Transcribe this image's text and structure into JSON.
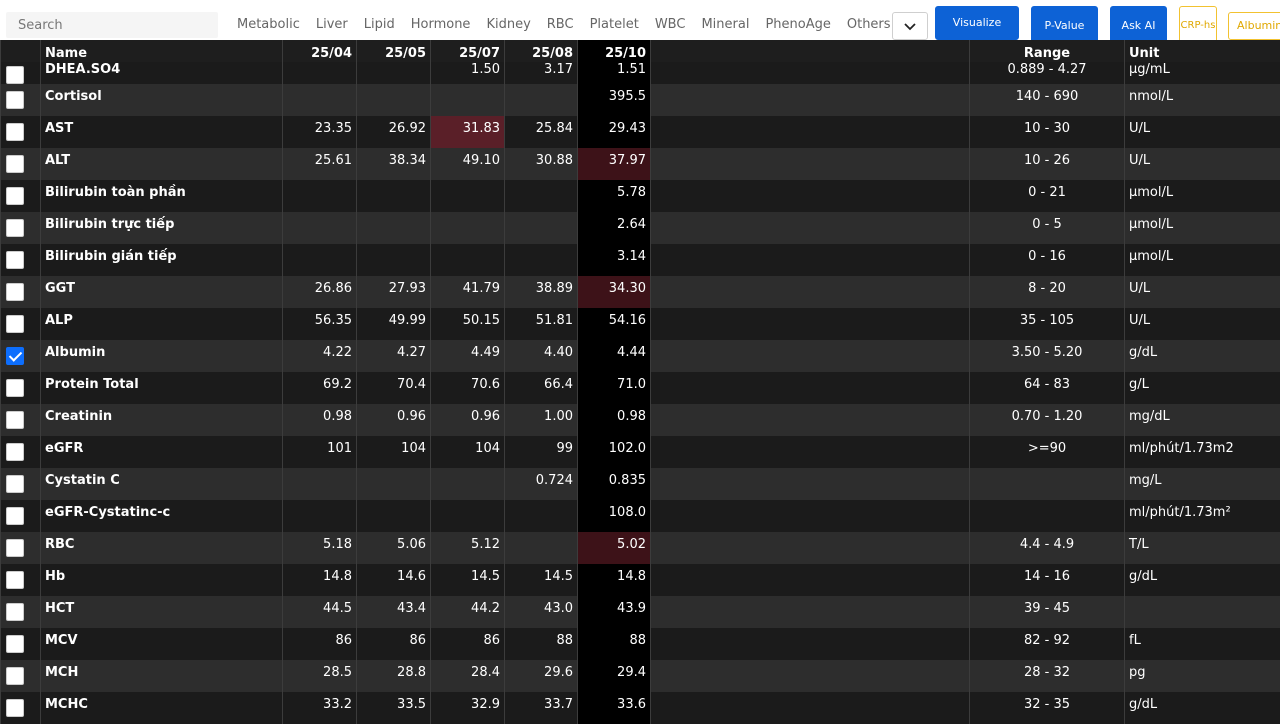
{
  "toolbar": {
    "search_placeholder": "Search",
    "tabs": [
      "Metabolic",
      "Liver",
      "Lipid",
      "Hormone",
      "Kidney",
      "RBC",
      "Platelet",
      "WBC",
      "Mineral",
      "PhenoAge",
      "Others"
    ],
    "buttons": {
      "visualize": "Visualize",
      "pvalue": "P-Value",
      "askai": "Ask AI",
      "crp": "CRP-hs",
      "albumin": "Albumin"
    },
    "dropdown_icon": "chevron-down-icon"
  },
  "table": {
    "headers": {
      "name": "Name",
      "dates": [
        "25/04",
        "25/05",
        "25/07",
        "25/08",
        "25/10"
      ],
      "range": "Range",
      "unit": "Unit"
    },
    "rows": [
      {
        "name": "DHEA.SO4",
        "values": [
          "",
          "",
          "1.50",
          "3.17",
          "1.51"
        ],
        "range": "0.889 - 4.27",
        "unit": "µg/mL",
        "checked": false
      },
      {
        "name": "Cortisol",
        "values": [
          "",
          "",
          "",
          "",
          "395.5"
        ],
        "range": "140 - 690",
        "unit": "nmol/L",
        "checked": false
      },
      {
        "name": "AST",
        "values": [
          "23.35",
          "26.92",
          "31.83",
          "25.84",
          "29.43"
        ],
        "range": "10 - 30",
        "unit": "U/L",
        "checked": false
      },
      {
        "name": "ALT",
        "values": [
          "25.61",
          "38.34",
          "49.10",
          "30.88",
          "37.97"
        ],
        "range": "10 - 26",
        "unit": "U/L",
        "checked": false
      },
      {
        "name": "Bilirubin toàn phần",
        "values": [
          "",
          "",
          "",
          "",
          "5.78"
        ],
        "range": "0 - 21",
        "unit": "µmol/L",
        "checked": false
      },
      {
        "name": "Bilirubin trực tiếp",
        "values": [
          "",
          "",
          "",
          "",
          "2.64"
        ],
        "range": "0 - 5",
        "unit": "µmol/L",
        "checked": false
      },
      {
        "name": "Bilirubin gián tiếp",
        "values": [
          "",
          "",
          "",
          "",
          "3.14"
        ],
        "range": "0 - 16",
        "unit": "µmol/L",
        "checked": false
      },
      {
        "name": "GGT",
        "values": [
          "26.86",
          "27.93",
          "41.79",
          "38.89",
          "34.30"
        ],
        "range": "8 - 20",
        "unit": "U/L",
        "checked": false
      },
      {
        "name": "ALP",
        "values": [
          "56.35",
          "49.99",
          "50.15",
          "51.81",
          "54.16"
        ],
        "range": "35 - 105",
        "unit": "U/L",
        "checked": false
      },
      {
        "name": "Albumin",
        "values": [
          "4.22",
          "4.27",
          "4.49",
          "4.40",
          "4.44"
        ],
        "range": "3.50 - 5.20",
        "unit": "g/dL",
        "checked": true
      },
      {
        "name": "Protein Total",
        "values": [
          "69.2",
          "70.4",
          "70.6",
          "66.4",
          "71.0"
        ],
        "range": "64 - 83",
        "unit": "g/L",
        "checked": false
      },
      {
        "name": "Creatinin",
        "values": [
          "0.98",
          "0.96",
          "0.96",
          "1.00",
          "0.98"
        ],
        "range": "0.70 - 1.20",
        "unit": "mg/dL",
        "checked": false
      },
      {
        "name": "eGFR",
        "values": [
          "101",
          "104",
          "104",
          "99",
          "102.0"
        ],
        "range": ">=90",
        "unit": "ml/phút/1.73m2",
        "checked": false
      },
      {
        "name": "Cystatin C",
        "values": [
          "",
          "",
          "",
          "0.724",
          "0.835"
        ],
        "range": "",
        "unit": "mg/L",
        "checked": false
      },
      {
        "name": "eGFR-Cystatinc-c",
        "values": [
          "",
          "",
          "",
          "",
          "108.0"
        ],
        "range": "",
        "unit": "ml/phút/1.73m²",
        "checked": false
      },
      {
        "name": "RBC",
        "values": [
          "5.18",
          "5.06",
          "5.12",
          "",
          "5.02"
        ],
        "range": "4.4 - 4.9",
        "unit": "T/L",
        "checked": false
      },
      {
        "name": "Hb",
        "values": [
          "14.8",
          "14.6",
          "14.5",
          "14.5",
          "14.8"
        ],
        "range": "14 - 16",
        "unit": "g/dL",
        "checked": false
      },
      {
        "name": "HCT",
        "values": [
          "44.5",
          "43.4",
          "44.2",
          "43.0",
          "43.9"
        ],
        "range": "39 - 45",
        "unit": "",
        "checked": false
      },
      {
        "name": "MCV",
        "values": [
          "86",
          "86",
          "86",
          "88",
          "88"
        ],
        "range": "82 - 92",
        "unit": "fL",
        "checked": false
      },
      {
        "name": "MCH",
        "values": [
          "28.5",
          "28.8",
          "28.4",
          "29.6",
          "29.4"
        ],
        "range": "28 - 32",
        "unit": "pg",
        "checked": false
      },
      {
        "name": "MCHC",
        "values": [
          "33.2",
          "33.5",
          "32.9",
          "33.7",
          "33.6"
        ],
        "range": "32 - 35",
        "unit": "g/dL",
        "checked": false
      }
    ],
    "highlights": [
      {
        "row": 2,
        "col": 2,
        "level": "high"
      },
      {
        "row": 3,
        "col": 4,
        "level": "mild"
      },
      {
        "row": 7,
        "col": 4,
        "level": "mild"
      },
      {
        "row": 15,
        "col": 4,
        "level": "mild"
      }
    ],
    "colors": {
      "current_column": "#000000",
      "high": "#5a1f28",
      "mild": "#3d1218",
      "row_odd": "#1b1b1b",
      "row_even": "#2d2d2d",
      "primary_button": "#0d62d6",
      "outline_button": "#f2c230"
    }
  }
}
